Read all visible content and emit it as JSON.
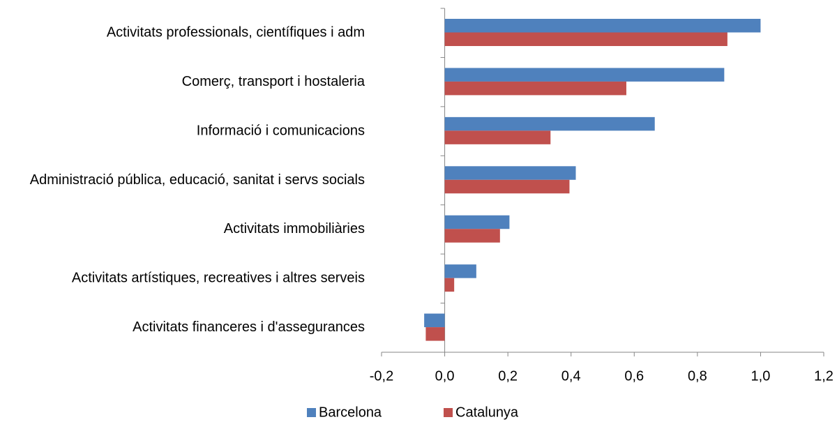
{
  "chart_data": {
    "type": "bar",
    "orientation": "horizontal",
    "categories": [
      "Activitats professionals, científiques i adm",
      "Comerç, transport i hostaleria",
      "Informació i comunicacions",
      "Administració pública, educació, sanitat i servs socials",
      "Activitats immobiliàries",
      "Activitats artístiques, recreatives i altres serveis",
      "Activitats financeres i d'assegurances"
    ],
    "series": [
      {
        "name": "Barcelona",
        "color": "#4f81bd",
        "values": [
          1.0,
          0.885,
          0.665,
          0.415,
          0.205,
          0.1,
          -0.065
        ]
      },
      {
        "name": "Catalunya",
        "color": "#c0504d",
        "values": [
          0.895,
          0.575,
          0.335,
          0.395,
          0.175,
          0.03,
          -0.06
        ]
      }
    ],
    "xlim": [
      -0.2,
      1.2
    ],
    "xticks": [
      {
        "value": -0.2,
        "label": "-0,2"
      },
      {
        "value": 0,
        "label": "0,0"
      },
      {
        "value": 0.2,
        "label": "0,2"
      },
      {
        "value": 0.4,
        "label": "0,4"
      },
      {
        "value": 0.6,
        "label": "0,6"
      },
      {
        "value": 0.8,
        "label": "0,8"
      },
      {
        "value": 1.0,
        "label": "1,0"
      },
      {
        "value": 1.2,
        "label": "1,2"
      }
    ],
    "grid": false,
    "legend": "bottom"
  }
}
